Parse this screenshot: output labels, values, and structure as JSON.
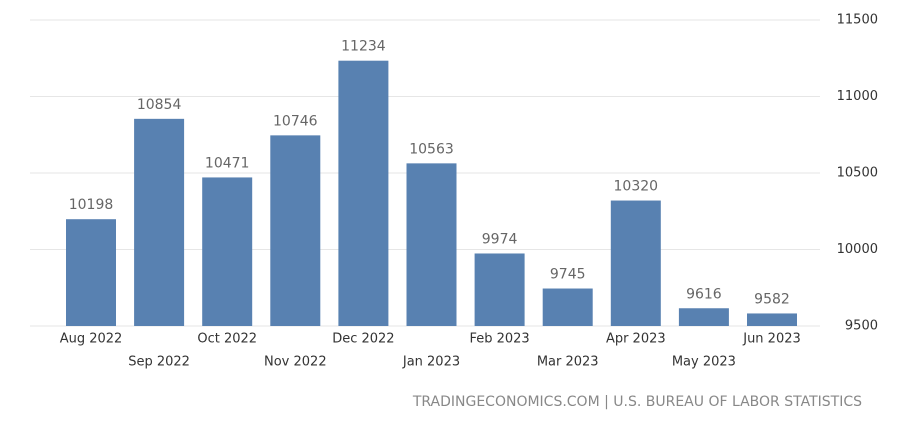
{
  "chart_data": {
    "type": "bar",
    "categories": [
      "Aug 2022",
      "Sep 2022",
      "Oct 2022",
      "Nov 2022",
      "Dec 2022",
      "Jan 2023",
      "Feb 2023",
      "Mar 2023",
      "Apr 2023",
      "May 2023",
      "Jun 2023"
    ],
    "values": [
      10198,
      10854,
      10471,
      10746,
      11234,
      10563,
      9974,
      9745,
      10320,
      9616,
      9582
    ],
    "color": "#5881b1",
    "ylim": [
      9500,
      11500
    ],
    "yticks": [
      9500,
      10000,
      10500,
      11000,
      11500
    ],
    "grid": true,
    "source": "TRADINGECONOMICS.COM | U.S. BUREAU OF LABOR STATISTICS"
  }
}
